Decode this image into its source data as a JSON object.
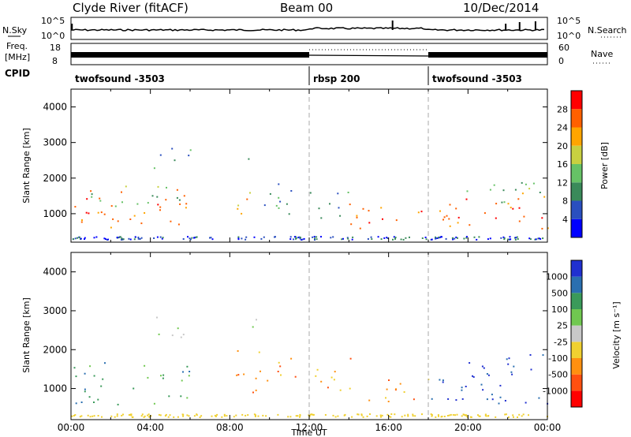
{
  "header": {
    "station": "Clyde River (fitACF)",
    "beam": "Beam 00",
    "date": "10/Dec/2014"
  },
  "top_panels": {
    "nsky_label": "N.Sky",
    "nsky_ticks": [
      "10^5",
      "10^0"
    ],
    "nsearch_label": "N.Search",
    "nsearch_ticks": [
      "10^5",
      "10^0"
    ],
    "freq_label_1": "Freq.",
    "freq_label_2": "[MHz]",
    "freq_ticks": [
      "18",
      "8"
    ],
    "nave_label": "Nave",
    "nave_ticks": [
      "60",
      "0"
    ],
    "cpid_label": "CPID",
    "cpid_segments": [
      {
        "name": "twofsound -3503",
        "start": 0,
        "end": 12
      },
      {
        "name": "rbsp 200",
        "start": 12,
        "end": 18
      },
      {
        "name": "twofsound -3503",
        "start": 18,
        "end": 24
      }
    ]
  },
  "colors": {
    "power": [
      "#0000ff",
      "#2a4fbf",
      "#3a8a5a",
      "#66c266",
      "#c8d040",
      "#ffa500",
      "#ff6000",
      "#ff0000"
    ],
    "velocity": [
      "#2030d0",
      "#2a6fb0",
      "#3a9a5a",
      "#70c850",
      "#c8c8c8",
      "#f0d030",
      "#ff9010",
      "#ff5010",
      "#ff0000"
    ]
  },
  "chart_data": [
    {
      "type": "heatmap",
      "panel": "power",
      "xlabel": "",
      "ylabel": "Slant Range [km]",
      "xlim": [
        0,
        24
      ],
      "ylim": [
        200,
        4500
      ],
      "yticks": [
        "1000",
        "2000",
        "3000",
        "4000"
      ],
      "colorbar_label": "Power [dB]",
      "colorbar_ticks": [
        "4",
        "8",
        "12",
        "16",
        "20",
        "24",
        "28"
      ],
      "colorbar_range": [
        0,
        32
      ],
      "scatter_bands": [
        {
          "t0": 0.0,
          "t1": 6.0,
          "r0": 600,
          "r1": 1750,
          "level": 28
        },
        {
          "t0": 1.0,
          "t1": 6.0,
          "r0": 1200,
          "r1": 1800,
          "level": 14
        },
        {
          "t0": 3.8,
          "t1": 6.0,
          "r0": 2300,
          "r1": 2900,
          "level": 12
        },
        {
          "t0": 8.3,
          "t1": 9.3,
          "r0": 900,
          "r1": 1900,
          "level": 24
        },
        {
          "t0": 8.8,
          "t1": 9.6,
          "r0": 2500,
          "r1": 2900,
          "level": 10
        },
        {
          "t0": 9.5,
          "t1": 11.5,
          "r0": 900,
          "r1": 2000,
          "level": 10
        },
        {
          "t0": 12.0,
          "t1": 14.0,
          "r0": 900,
          "r1": 1800,
          "level": 12
        },
        {
          "t0": 14.0,
          "t1": 18.0,
          "r0": 600,
          "r1": 1300,
          "level": 28
        },
        {
          "t0": 18.0,
          "t1": 24.0,
          "r0": 600,
          "r1": 1600,
          "level": 26
        },
        {
          "t0": 19.5,
          "t1": 24.0,
          "r0": 1300,
          "r1": 1900,
          "level": 14
        }
      ]
    },
    {
      "type": "heatmap",
      "panel": "velocity",
      "xlabel": "Time UT",
      "ylabel": "Slant Range [km]",
      "xlim": [
        0,
        24
      ],
      "ylim": [
        200,
        4500
      ],
      "xticks": [
        "00:00",
        "04:00",
        "08:00",
        "12:00",
        "16:00",
        "20:00",
        "00:00"
      ],
      "yticks": [
        "1000",
        "2000",
        "3000",
        "4000"
      ],
      "colorbar_label": "Velocity [m s⁻¹]",
      "colorbar_ticks": [
        "1000",
        "500",
        "100",
        "25",
        "-25",
        "-100",
        "-500",
        "-1000"
      ],
      "scatter_bands": [
        {
          "t0": 0.0,
          "t1": 6.0,
          "r0": 600,
          "r1": 1750,
          "level": "green"
        },
        {
          "t0": 3.8,
          "t1": 6.0,
          "r0": 2300,
          "r1": 2900,
          "level": "gray"
        },
        {
          "t0": 8.3,
          "t1": 11.5,
          "r0": 900,
          "r1": 2000,
          "level": "orange"
        },
        {
          "t0": 8.8,
          "t1": 10.0,
          "r0": 2500,
          "r1": 2900,
          "level": "gray"
        },
        {
          "t0": 12.0,
          "t1": 14.5,
          "r0": 900,
          "r1": 1800,
          "level": "orange"
        },
        {
          "t0": 14.5,
          "t1": 18.0,
          "r0": 600,
          "r1": 1300,
          "level": "orange"
        },
        {
          "t0": 18.0,
          "t1": 24.0,
          "r0": 600,
          "r1": 1600,
          "level": "blue"
        },
        {
          "t0": 20.0,
          "t1": 24.0,
          "r0": 1300,
          "r1": 1900,
          "level": "blue"
        }
      ]
    }
  ]
}
